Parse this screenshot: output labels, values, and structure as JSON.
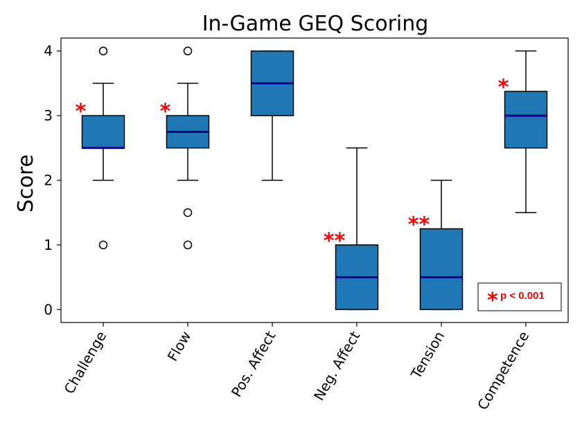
{
  "chart_data": {
    "type": "boxplot",
    "title": "In-Game GEQ Scoring",
    "xlabel": "",
    "ylabel": "Score",
    "ylim": [
      -0.2,
      4.2
    ],
    "yticks": [
      "0",
      "1",
      "2",
      "3",
      "4"
    ],
    "categories": [
      "Challenge",
      "Flow",
      "Pos. Affect",
      "Neg. Affect",
      "Tension",
      "Competence"
    ],
    "boxes": [
      {
        "category": "Challenge",
        "whisker_low": 2.0,
        "q1": 2.5,
        "median": 2.5,
        "q3": 3.0,
        "whisker_high": 3.5,
        "outliers": [
          1.0,
          4.0
        ],
        "significance": "*"
      },
      {
        "category": "Flow",
        "whisker_low": 2.0,
        "q1": 2.5,
        "median": 2.75,
        "q3": 3.0,
        "whisker_high": 3.5,
        "outliers": [
          1.0,
          1.5,
          4.0
        ],
        "significance": "*"
      },
      {
        "category": "Pos. Affect",
        "whisker_low": 2.0,
        "q1": 3.0,
        "median": 3.5,
        "q3": 4.0,
        "whisker_high": 4.0,
        "outliers": [],
        "significance": ""
      },
      {
        "category": "Neg. Affect",
        "whisker_low": 0.0,
        "q1": 0.0,
        "median": 0.5,
        "q3": 1.0,
        "whisker_high": 2.5,
        "outliers": [],
        "significance": "**"
      },
      {
        "category": "Tension",
        "whisker_low": 0.0,
        "q1": 0.0,
        "median": 0.5,
        "q3": 1.25,
        "whisker_high": 2.0,
        "outliers": [],
        "significance": "**"
      },
      {
        "category": "Competence",
        "whisker_low": 1.5,
        "q1": 2.5,
        "median": 3.0,
        "q3": 3.375,
        "whisker_high": 4.0,
        "outliers": [],
        "significance": "*"
      }
    ],
    "legend": {
      "symbol": "*",
      "text": "p < 0.001",
      "placement": "bottom-right"
    },
    "colors": {
      "box_fill": "#1f77b4",
      "median": "#00008b",
      "significance": "#ff0000",
      "edge": "#000000"
    }
  }
}
